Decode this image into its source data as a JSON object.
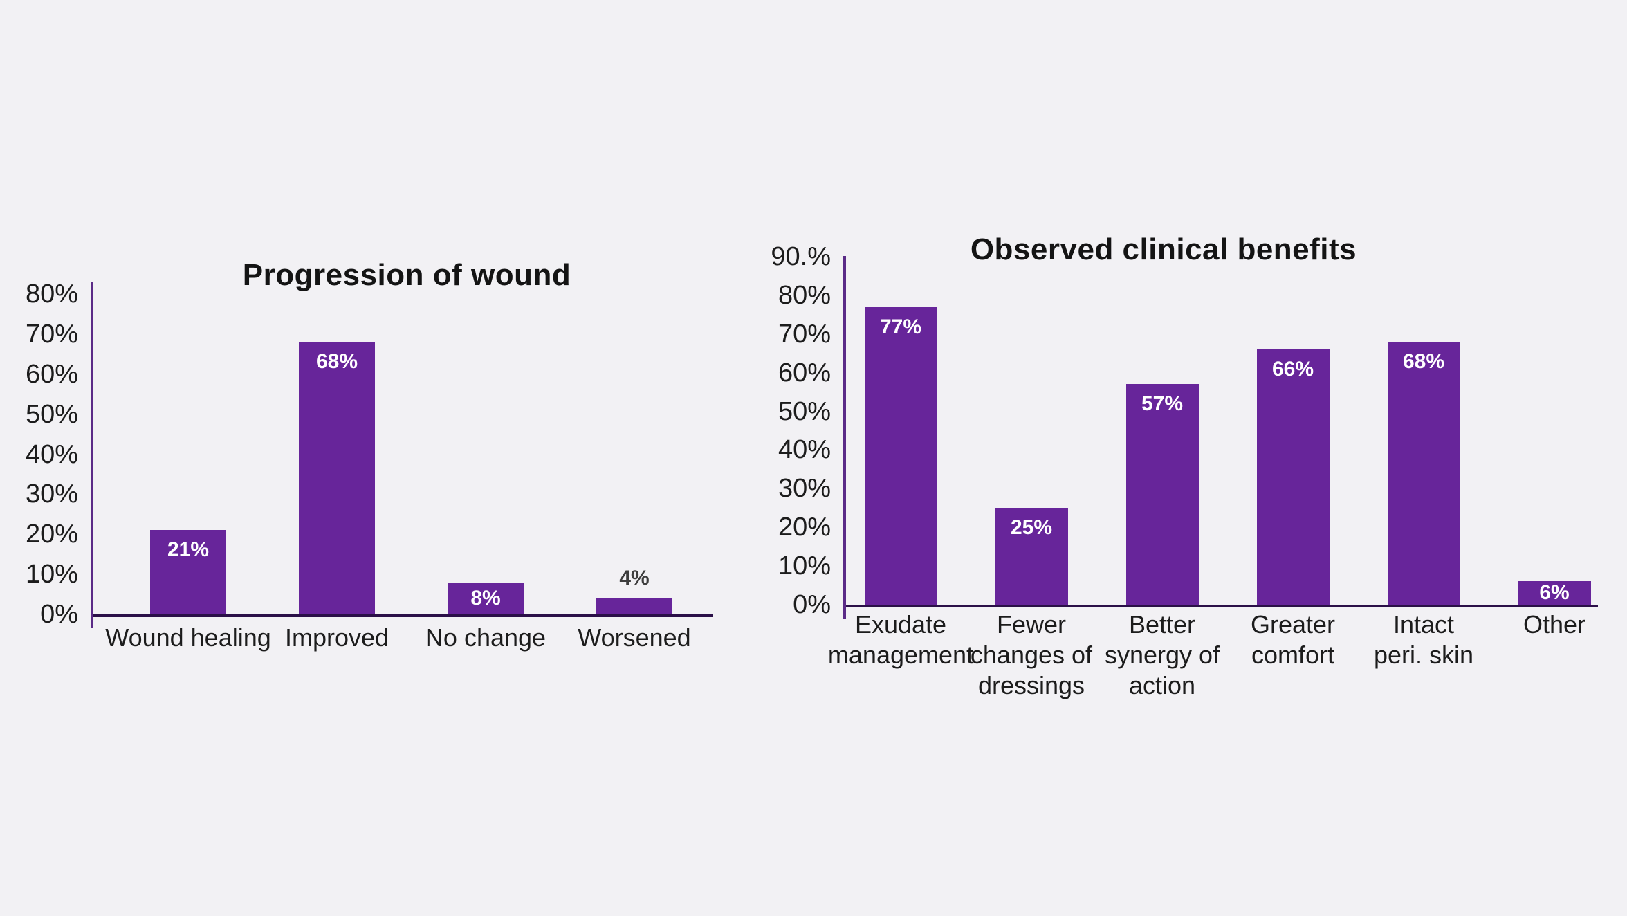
{
  "page": {
    "background_color": "#F2F1F4"
  },
  "chart_data": [
    {
      "type": "bar",
      "title": "Progression of wound",
      "categories": [
        "Wound healing",
        "Improved",
        "No change",
        "Worsened"
      ],
      "values": [
        21,
        68,
        8,
        4
      ],
      "bars": [
        {
          "category": "Wound healing",
          "value": 21,
          "value_label": "21%",
          "label_placement": "inside"
        },
        {
          "category": "Improved",
          "value": 68,
          "value_label": "68%",
          "label_placement": "inside"
        },
        {
          "category": "No change",
          "value": 8,
          "value_label": "8%",
          "label_placement": "inside"
        },
        {
          "category": "Worsened",
          "value": 4,
          "value_label": "4%",
          "label_placement": "above"
        }
      ],
      "yticks": [
        {
          "label": "0%",
          "value": 0
        },
        {
          "label": "10%",
          "value": 10
        },
        {
          "label": "20%",
          "value": 20
        },
        {
          "label": "30%",
          "value": 30
        },
        {
          "label": "40%",
          "value": 40
        },
        {
          "label": "50%",
          "value": 50
        },
        {
          "label": "60%",
          "value": 60
        },
        {
          "label": "70%",
          "value": 70
        },
        {
          "label": "80%",
          "value": 80
        }
      ],
      "ylim": [
        0,
        80
      ],
      "xlabel": "",
      "ylabel": "",
      "grid": false,
      "legend": null,
      "colors": {
        "bar": "#67259A",
        "value_label_inside": "#FFFFFF",
        "value_label_above": "#3D3D3D",
        "axis_y_line": "#5B2B87",
        "axis_x_line": "#2B1048",
        "tick_text": "#1C1C1C",
        "title_text": "#141414",
        "category_text": "#1C1C1C"
      }
    },
    {
      "type": "bar",
      "title": "Observed clinical benefits",
      "categories": [
        "Exudate management",
        "Fewer changes of dressings",
        "Better synergy of action",
        "Greater comfort",
        "Intact peri. skin",
        "Other"
      ],
      "values": [
        77,
        25,
        57,
        66,
        68,
        6
      ],
      "bars": [
        {
          "category": "Exudate\nmanagement",
          "value": 77,
          "value_label": "77%",
          "label_placement": "inside"
        },
        {
          "category": "Fewer\nchanges of\ndressings",
          "value": 25,
          "value_label": "25%",
          "label_placement": "inside"
        },
        {
          "category": "Better\nsynergy of\naction",
          "value": 57,
          "value_label": "57%",
          "label_placement": "inside"
        },
        {
          "category": "Greater\ncomfort",
          "value": 66,
          "value_label": "66%",
          "label_placement": "inside"
        },
        {
          "category": "Intact\nperi. skin",
          "value": 68,
          "value_label": "68%",
          "label_placement": "inside"
        },
        {
          "category": "Other",
          "value": 6,
          "value_label": "6%",
          "label_placement": "inside"
        }
      ],
      "yticks": [
        {
          "label": "0%",
          "value": 0
        },
        {
          "label": "10%",
          "value": 10
        },
        {
          "label": "20%",
          "value": 20
        },
        {
          "label": "30%",
          "value": 30
        },
        {
          "label": "40%",
          "value": 40
        },
        {
          "label": "50%",
          "value": 50
        },
        {
          "label": "60%",
          "value": 60
        },
        {
          "label": "70%",
          "value": 70
        },
        {
          "label": "80%",
          "value": 80
        },
        {
          "label": "90.%",
          "value": 90
        }
      ],
      "ylim": [
        0,
        90
      ],
      "xlabel": "",
      "ylabel": "",
      "grid": false,
      "legend": null,
      "colors": {
        "bar": "#67259A",
        "value_label_inside": "#FFFFFF",
        "value_label_above": "#3D3D3D",
        "axis_y_line": "#5B2B87",
        "axis_x_line": "#2B1048",
        "tick_text": "#1C1C1C",
        "title_text": "#141414",
        "category_text": "#1C1C1C"
      }
    }
  ]
}
